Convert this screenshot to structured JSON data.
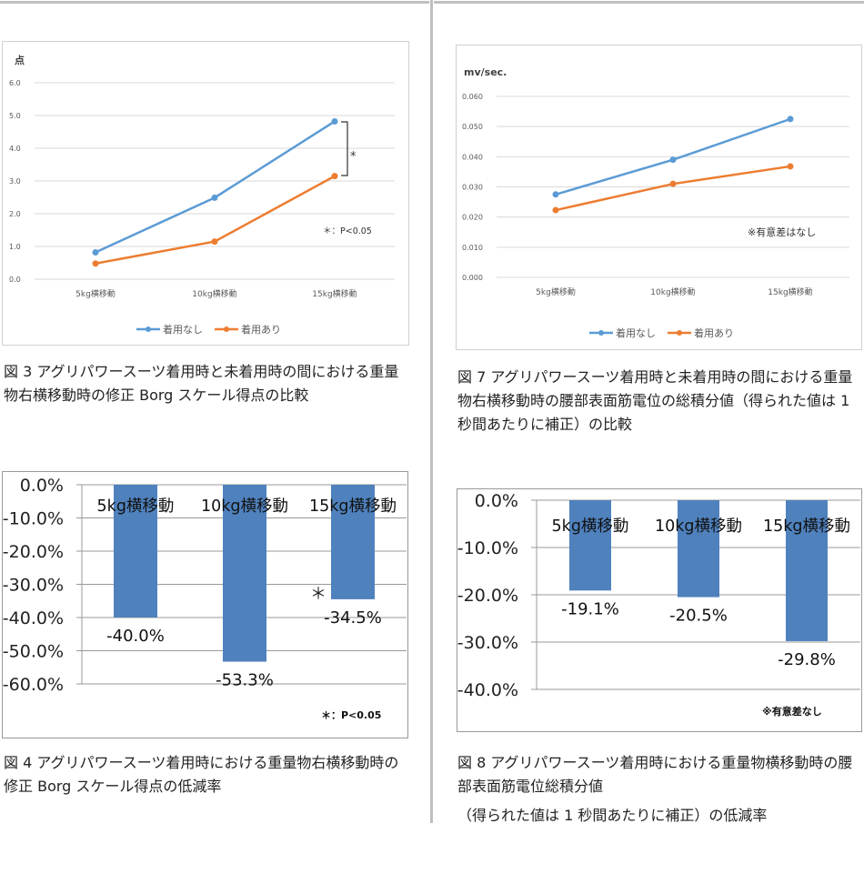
{
  "chart_data": [
    {
      "type": "line",
      "ylabel": "点",
      "categories": [
        "5kg横移動",
        "10kg横移動",
        "15kg横移動"
      ],
      "ylim": [
        0,
        6
      ],
      "yticks": [
        "0.0",
        "1.0",
        "2.0",
        "3.0",
        "4.0",
        "5.0",
        "6.0"
      ],
      "grid": true,
      "legend": "bottom",
      "series": [
        {
          "name": "着用なし",
          "color": "#5b9bd5",
          "values": [
            0.82,
            2.49,
            4.82
          ]
        },
        {
          "name": "着用あり",
          "color": "#ed7d31",
          "values": [
            0.48,
            1.15,
            3.15
          ]
        }
      ],
      "annotations": {
        "bracket_mark": "*",
        "note": "＊：P<0.05"
      }
    },
    {
      "type": "line",
      "ylabel": "mv/sec.",
      "categories": [
        "5kg横移動",
        "10kg横移動",
        "15kg横移動"
      ],
      "ylim": [
        0,
        0.06
      ],
      "yticks": [
        "0.000",
        "0.010",
        "0.020",
        "0.030",
        "0.040",
        "0.050",
        "0.060"
      ],
      "grid": true,
      "legend": "bottom",
      "series": [
        {
          "name": "着用なし",
          "color": "#5b9bd5",
          "values": [
            0.0275,
            0.039,
            0.0525
          ]
        },
        {
          "name": "着用あり",
          "color": "#ed7d31",
          "values": [
            0.0223,
            0.031,
            0.0368
          ]
        }
      ],
      "annotations": {
        "note": "※有意差はなし"
      }
    },
    {
      "type": "bar",
      "categories": [
        "5kg横移動",
        "10kg横移動",
        "15kg横移動"
      ],
      "ylim": [
        -60,
        0
      ],
      "yticks": [
        "0.0%",
        "-10.0%",
        "-20.0%",
        "-30.0%",
        "-40.0%",
        "-50.0%",
        "-60.0%"
      ],
      "grid": true,
      "color": "#4f81bd",
      "values": [
        -40.0,
        -53.3,
        -34.5
      ],
      "labels": [
        "-40.0%",
        "-53.3%",
        "-34.5%"
      ],
      "annotations": {
        "star": "＊",
        "note": "＊：P<0.05"
      }
    },
    {
      "type": "bar",
      "categories": [
        "5kg横移動",
        "10kg横移動",
        "15kg横移動"
      ],
      "ylim": [
        -40,
        0
      ],
      "yticks": [
        "0.0%",
        "-10.0%",
        "-20.0%",
        "-30.0%",
        "-40.0%"
      ],
      "grid": true,
      "color": "#4f81bd",
      "values": [
        -19.1,
        -20.5,
        -29.8
      ],
      "labels": [
        "-19.1%",
        "-20.5%",
        "-29.8%"
      ],
      "annotations": {
        "note": "※有意差なし"
      }
    }
  ],
  "captions": [
    "図 3 アグリパワースーツ着用時と未着用時の間における重量物右横移動時の修正 Borg スケール得点の比較",
    "図 7 アグリパワースーツ着用時と未着用時の間における重量物右横移動時の腰部表面筋電位の総積分値（得られた値は 1 秒間あたりに補正）の比較",
    "図 4 アグリパワースーツ着用時における重量物右横移動時の修正 Borg スケール得点の低減率",
    "図 8 アグリパワースーツ着用時における重量物横移動時の腰部表面筋電位総積分値",
    "（得られた値は 1 秒間あたりに補正）の低減率"
  ]
}
